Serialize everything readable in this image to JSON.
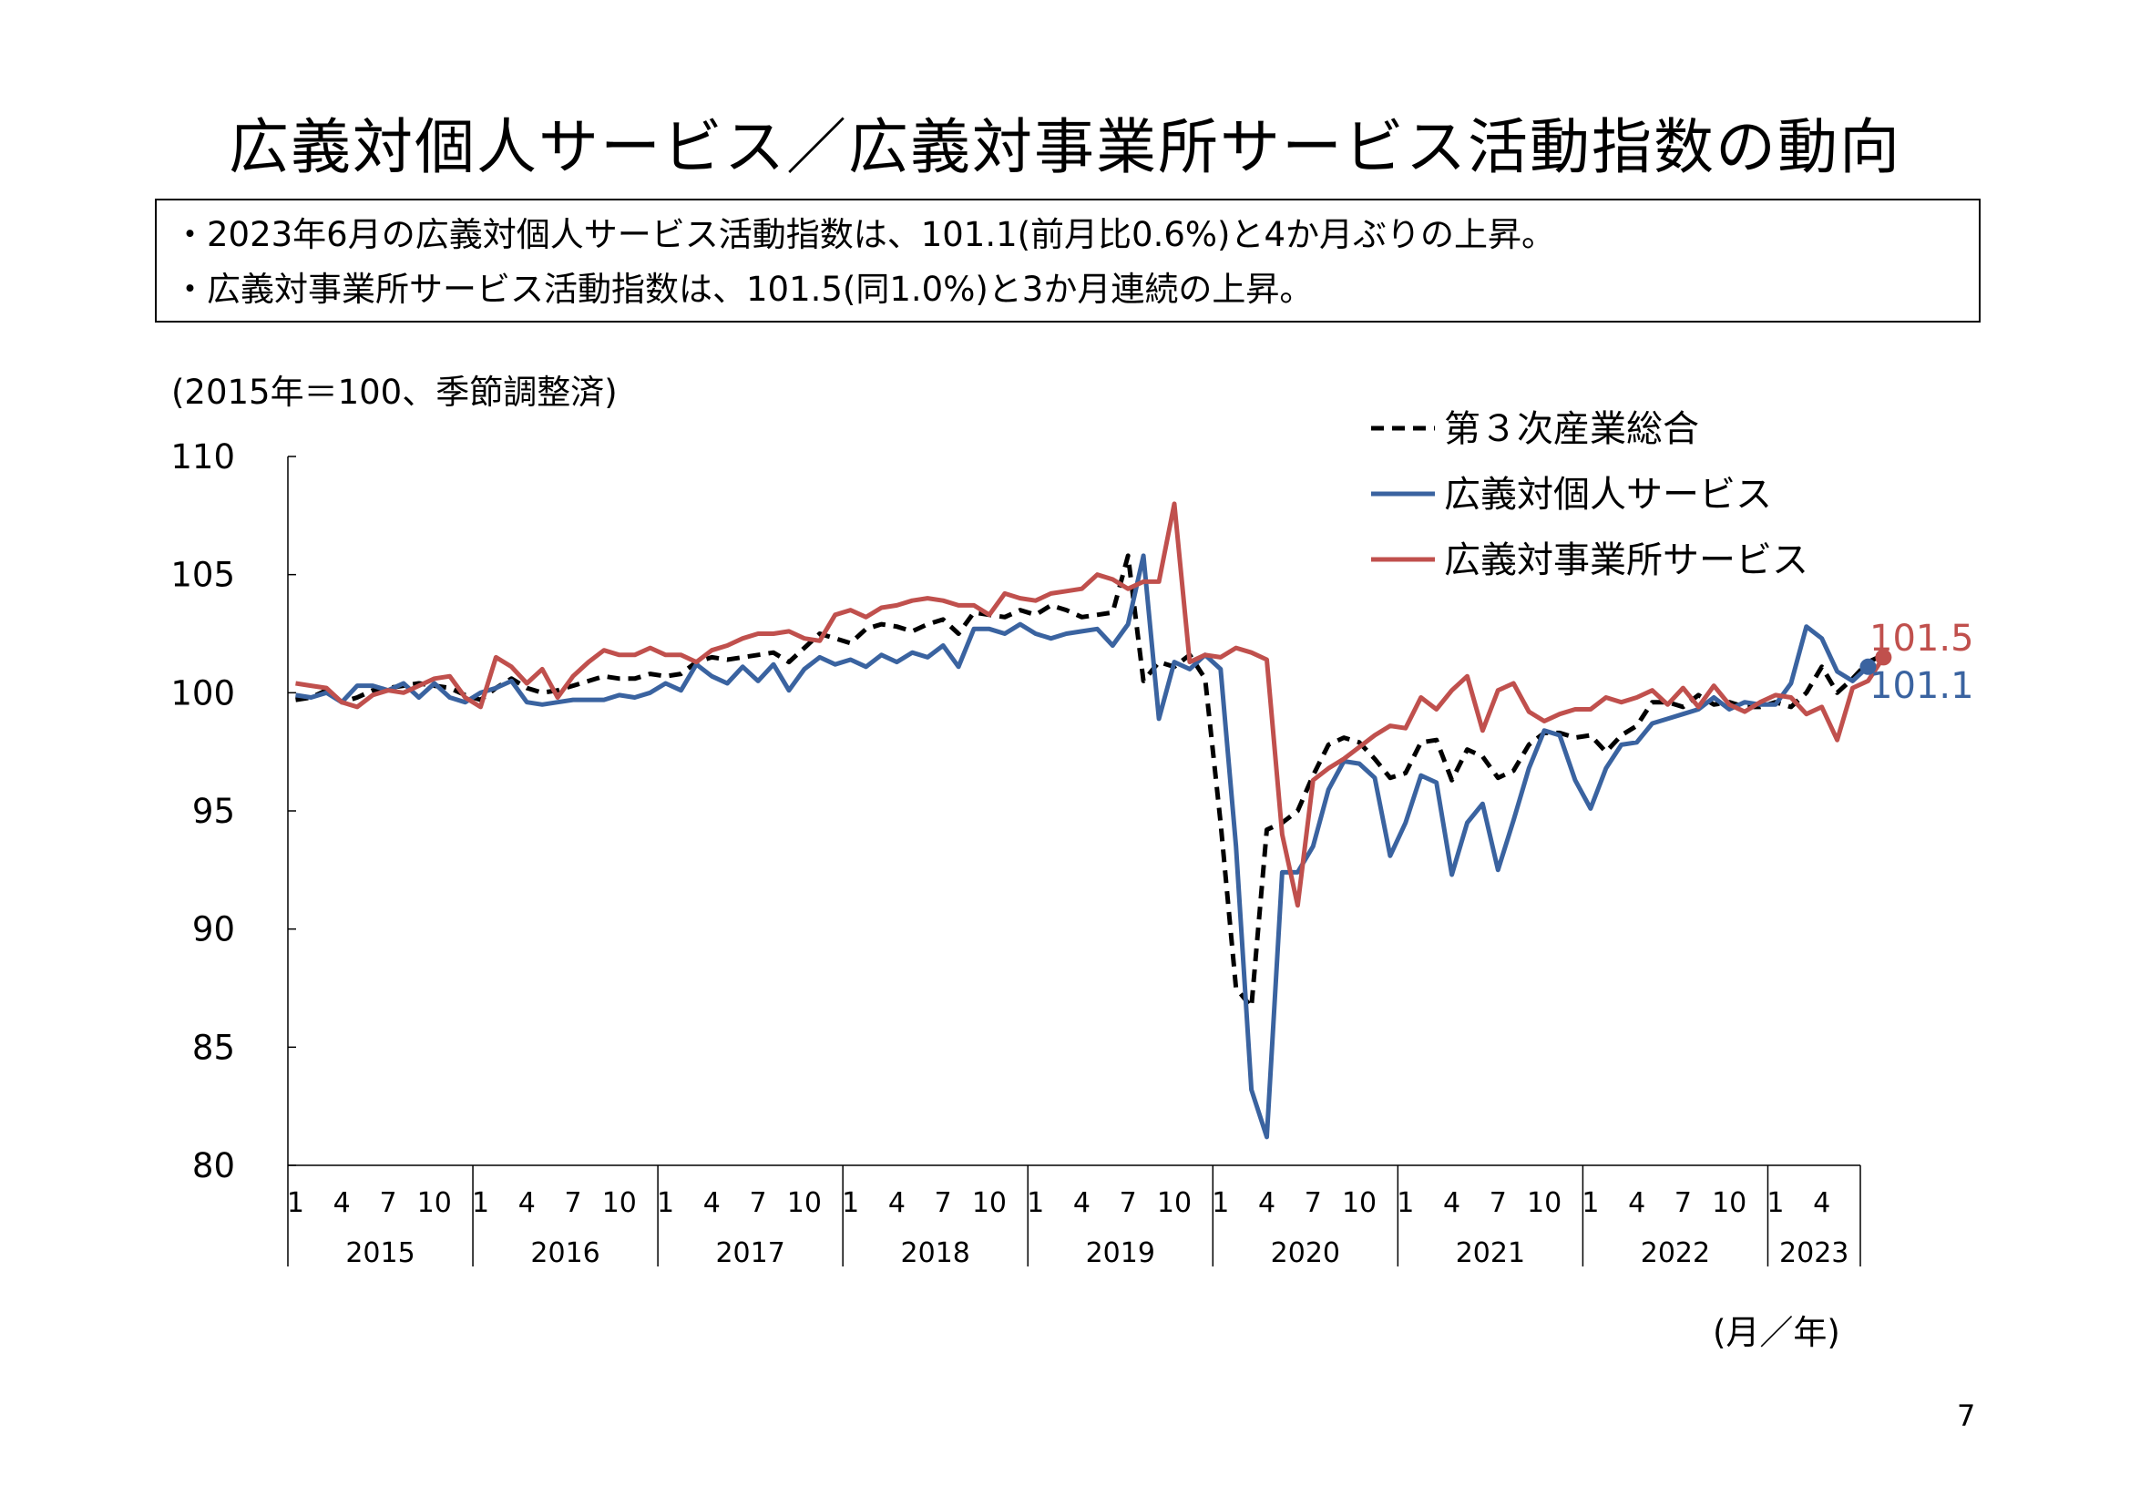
{
  "title": "広義対個人サービス／広義対事業所サービス活動指数の動向",
  "summary": [
    "・2023年6月の広義対個人サービス活動指数は、101.1(前月比0.6%)と4か月ぶりの上昇。",
    "・広義対事業所サービス活動指数は、101.5(同1.0%)と3か月連続の上昇。"
  ],
  "unit_note": "(2015年＝100、季節調整済)",
  "x_unit_note": "(月／年)",
  "page_number": "7",
  "chart_data": {
    "type": "line",
    "ylim": [
      80,
      110
    ],
    "yticks": [
      "80",
      "85",
      "90",
      "95",
      "100",
      "105",
      "110"
    ],
    "month_ticks": [
      "1",
      "4",
      "7",
      "10"
    ],
    "years": [
      "2015",
      "2016",
      "2017",
      "2018",
      "2019",
      "2020",
      "2021",
      "2022",
      "2023"
    ],
    "end_labels": {
      "business": "101.5",
      "personal": "101.1"
    },
    "series": [
      {
        "name": "第３次産業総合",
        "color": "#000000",
        "style": "dashed",
        "values": [
          99.7,
          99.8,
          100.1,
          99.6,
          99.8,
          100.1,
          100.2,
          100.3,
          100.4,
          100.3,
          100.2,
          99.9,
          99.7,
          100.2,
          100.6,
          100.2,
          100.0,
          100.1,
          100.3,
          100.5,
          100.7,
          100.6,
          100.6,
          100.8,
          100.7,
          100.8,
          101.3,
          101.5,
          101.4,
          101.5,
          101.6,
          101.7,
          101.3,
          101.9,
          102.5,
          102.3,
          102.1,
          102.7,
          102.9,
          102.8,
          102.6,
          102.9,
          103.1,
          102.5,
          103.4,
          103.3,
          103.2,
          103.5,
          103.3,
          103.7,
          103.5,
          103.2,
          103.3,
          103.4,
          105.8,
          100.5,
          101.3,
          101.1,
          101.6,
          100.6,
          94.5,
          87.5,
          86.7,
          94.2,
          94.5,
          95.0,
          96.5,
          97.8,
          98.1,
          97.9,
          97.2,
          96.4,
          96.6,
          97.9,
          98.0,
          96.3,
          97.6,
          97.3,
          96.4,
          96.7,
          97.8,
          98.3,
          98.3,
          98.1,
          98.2,
          97.5,
          98.2,
          98.6,
          99.6,
          99.6,
          99.4,
          99.9,
          99.5,
          99.6,
          99.4,
          99.4,
          99.6,
          99.4,
          100.0,
          101.1,
          100.0,
          100.6,
          101.3,
          101.6
        ]
      },
      {
        "name": "広義対個人サービス",
        "color": "#3a63a0",
        "style": "solid",
        "values": [
          99.9,
          99.8,
          100.0,
          99.6,
          100.3,
          100.3,
          100.1,
          100.4,
          99.8,
          100.4,
          99.8,
          99.6,
          100.0,
          100.2,
          100.5,
          99.6,
          99.5,
          99.6,
          99.7,
          99.7,
          99.7,
          99.9,
          99.8,
          100.0,
          100.4,
          100.1,
          101.2,
          100.7,
          100.4,
          101.1,
          100.5,
          101.2,
          100.1,
          101.0,
          101.5,
          101.2,
          101.4,
          101.1,
          101.6,
          101.3,
          101.7,
          101.5,
          102.0,
          101.1,
          102.7,
          102.7,
          102.5,
          102.9,
          102.5,
          102.3,
          102.5,
          102.6,
          102.7,
          102.0,
          102.9,
          105.8,
          98.9,
          101.3,
          101.0,
          101.6,
          101.0,
          93.5,
          83.2,
          81.2,
          92.4,
          92.4,
          93.5,
          95.9,
          97.1,
          97.0,
          96.4,
          93.1,
          94.5,
          96.5,
          96.2,
          92.3,
          94.5,
          95.3,
          92.5,
          94.6,
          96.8,
          98.4,
          98.2,
          96.3,
          95.1,
          96.8,
          97.8,
          97.9,
          98.7,
          98.9,
          99.1,
          99.3,
          99.8,
          99.3,
          99.6,
          99.5,
          99.5,
          100.4,
          102.8,
          102.3,
          100.9,
          100.5,
          101.1
        ]
      },
      {
        "name": "広義対事業所サービス",
        "color": "#c0504d",
        "style": "solid",
        "values": [
          100.4,
          100.3,
          100.2,
          99.6,
          99.4,
          99.9,
          100.1,
          100.0,
          100.3,
          100.6,
          100.7,
          99.8,
          99.4,
          101.5,
          101.1,
          100.4,
          101.0,
          99.8,
          100.7,
          101.3,
          101.8,
          101.6,
          101.6,
          101.9,
          101.6,
          101.6,
          101.3,
          101.8,
          102.0,
          102.3,
          102.5,
          102.5,
          102.6,
          102.3,
          102.2,
          103.3,
          103.5,
          103.2,
          103.6,
          103.7,
          103.9,
          104.0,
          103.9,
          103.7,
          103.7,
          103.3,
          104.2,
          104.0,
          103.9,
          104.2,
          104.3,
          104.4,
          105.0,
          104.8,
          104.4,
          104.7,
          104.7,
          108.0,
          101.3,
          101.6,
          101.5,
          101.9,
          101.7,
          101.4,
          94.0,
          91.0,
          96.3,
          96.8,
          97.2,
          97.7,
          98.2,
          98.6,
          98.5,
          99.8,
          99.3,
          100.1,
          100.7,
          98.4,
          100.1,
          100.4,
          99.2,
          98.8,
          99.1,
          99.3,
          99.3,
          99.8,
          99.6,
          99.8,
          100.1,
          99.5,
          100.2,
          99.4,
          100.3,
          99.5,
          99.2,
          99.6,
          99.9,
          99.8,
          99.1,
          99.4,
          98.0,
          100.2,
          100.5,
          101.5
        ]
      }
    ]
  }
}
